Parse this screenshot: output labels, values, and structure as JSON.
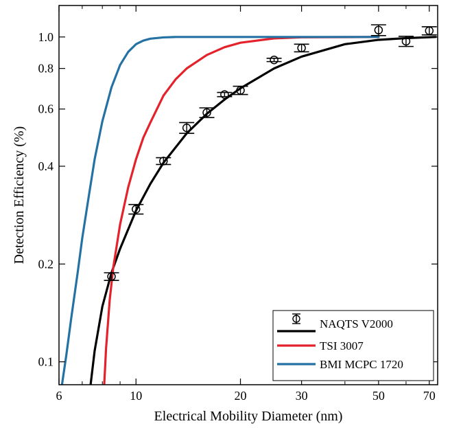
{
  "chart_data": {
    "type": "scatter",
    "xlabel": "Electrical Mobility Diameter (nm)",
    "ylabel": "Detection Efficiency (%)",
    "x_scale": "log",
    "y_scale": "log",
    "xlim": [
      6,
      74
    ],
    "ylim": [
      0.085,
      1.25
    ],
    "grid": false,
    "legend_position": "bottom-right",
    "x_ticks": [
      {
        "value": 6,
        "label": "6"
      },
      {
        "value": 10,
        "label": "10"
      },
      {
        "value": 20,
        "label": "20"
      },
      {
        "value": 30,
        "label": "30"
      },
      {
        "value": 50,
        "label": "50"
      },
      {
        "value": 70,
        "label": "70"
      }
    ],
    "y_ticks": [
      {
        "value": 0.1,
        "label": "0.1"
      },
      {
        "value": 0.2,
        "label": "0.2"
      },
      {
        "value": 0.4,
        "label": "0.4"
      },
      {
        "value": 0.6,
        "label": "0.6"
      },
      {
        "value": 0.8,
        "label": "0.8"
      },
      {
        "value": 1.0,
        "label": "1.0"
      }
    ],
    "series": [
      {
        "name": "NAQTS V2000",
        "kind": "scatter-errorbar",
        "color": "#000000",
        "points": [
          {
            "x": 8.5,
            "y": 0.183,
            "err": 0.005
          },
          {
            "x": 10.0,
            "y": 0.295,
            "err": 0.01
          },
          {
            "x": 12.0,
            "y": 0.415,
            "err": 0.01
          },
          {
            "x": 14.0,
            "y": 0.525,
            "err": 0.02
          },
          {
            "x": 16.0,
            "y": 0.585,
            "err": 0.02
          },
          {
            "x": 18.0,
            "y": 0.665,
            "err": 0.01
          },
          {
            "x": 20.0,
            "y": 0.685,
            "err": 0.02
          },
          {
            "x": 25.0,
            "y": 0.85,
            "err": 0.01
          },
          {
            "x": 30.0,
            "y": 0.925,
            "err": 0.025
          },
          {
            "x": 50.0,
            "y": 1.05,
            "err": 0.04
          },
          {
            "x": 60.0,
            "y": 0.97,
            "err": 0.035
          },
          {
            "x": 70.0,
            "y": 1.045,
            "err": 0.03
          }
        ]
      },
      {
        "name": "",
        "kind": "line",
        "color": "#000000",
        "x": [
          7.4,
          7.6,
          8.0,
          8.5,
          9.0,
          10.0,
          11.0,
          12.0,
          14.0,
          16.0,
          18.0,
          20.0,
          25.0,
          30.0,
          40.0,
          50.0,
          60.0,
          73.0
        ],
        "y": [
          0.085,
          0.108,
          0.148,
          0.188,
          0.223,
          0.292,
          0.353,
          0.41,
          0.505,
          0.58,
          0.642,
          0.695,
          0.8,
          0.87,
          0.95,
          0.98,
          0.992,
          1.0
        ]
      },
      {
        "name": "TSI 3007",
        "kind": "line",
        "color": "#e3222c",
        "x": [
          8.1,
          8.2,
          8.4,
          8.6,
          9.0,
          9.5,
          10.0,
          10.5,
          11.0,
          12.0,
          13.0,
          14.0,
          16.0,
          18.0,
          20.0,
          25.0,
          30.0,
          50.0
        ],
        "y": [
          0.085,
          0.11,
          0.155,
          0.195,
          0.265,
          0.345,
          0.42,
          0.49,
          0.545,
          0.66,
          0.74,
          0.8,
          0.88,
          0.93,
          0.96,
          0.99,
          0.998,
          1.0
        ]
      },
      {
        "name": "BMI MCPC 1720",
        "kind": "line",
        "color": "#2471a3",
        "x": [
          6.12,
          6.3,
          6.5,
          6.8,
          7.0,
          7.3,
          7.6,
          8.0,
          8.5,
          9.0,
          9.5,
          10.0,
          10.5,
          11.0,
          12.0,
          13.0,
          15.0,
          50.0
        ],
        "y": [
          0.085,
          0.105,
          0.135,
          0.19,
          0.24,
          0.32,
          0.42,
          0.55,
          0.7,
          0.82,
          0.9,
          0.95,
          0.975,
          0.988,
          0.997,
          1.0,
          1.0,
          1.0
        ]
      }
    ]
  }
}
